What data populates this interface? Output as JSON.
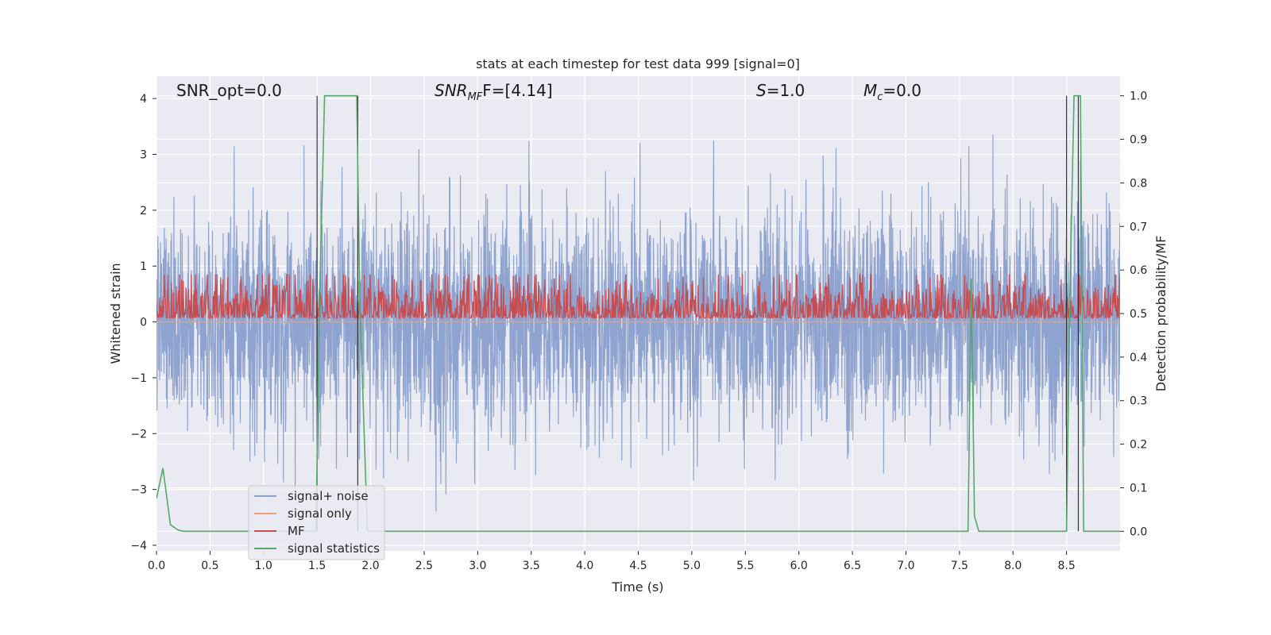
{
  "chart_data": {
    "type": "line",
    "title": "stats at each timestep for test data 999 [signal=0]",
    "xlabel": "Time (s)",
    "ylabel": "Whitened strain",
    "y2label": "Detection probability/MF",
    "xlim": [
      0,
      9
    ],
    "ylim": [
      -4.1,
      4.4
    ],
    "y2lim": [
      -0.045,
      1.045
    ],
    "xticks": [
      "0.0",
      "0.5",
      "1.0",
      "1.5",
      "2.0",
      "2.5",
      "3.0",
      "3.5",
      "4.0",
      "4.5",
      "5.0",
      "5.5",
      "6.0",
      "6.5",
      "7.0",
      "7.5",
      "8.0",
      "8.5"
    ],
    "yticks": [
      "4",
      "3",
      "2",
      "1",
      "0",
      "−1",
      "−2",
      "−3",
      "−4"
    ],
    "y2ticks": [
      "1.0",
      "0.9",
      "0.8",
      "0.7",
      "0.6",
      "0.5",
      "0.4",
      "0.3",
      "0.2",
      "0.1",
      "0.0"
    ],
    "grid": true,
    "legend_placement": "lower-left",
    "annotations": {
      "snr_opt": "SNR_opt=0.0",
      "snr_mf_main": "SNR",
      "snr_mf_sub": "MF",
      "snr_mf_value": "F=[4.14]",
      "s_main": "S",
      "s_value": "=1.0",
      "mc_main": "M",
      "mc_sub": "c",
      "mc_value": "=0.0"
    },
    "series": [
      {
        "name": "signal+ noise",
        "color": "#8ea3cf",
        "axis": "left",
        "description_noise_std": 1.0,
        "x_range": [
          0,
          9
        ]
      },
      {
        "name": "signal only",
        "color": "#e8a17f",
        "axis": "left",
        "x": [
          0,
          9
        ],
        "y": [
          0,
          0
        ]
      },
      {
        "name": "MF",
        "color": "#c44e52",
        "axis": "right",
        "baseline": 0.5,
        "x_range": [
          0,
          9
        ]
      },
      {
        "name": "signal statistics",
        "color": "#55a868",
        "axis": "right",
        "x": [
          0.0,
          0.06,
          0.13,
          0.2,
          0.25,
          0.3,
          1.49,
          1.52,
          1.57,
          1.87,
          1.9,
          1.97,
          2.0,
          7.55,
          7.58,
          7.61,
          7.64,
          7.68,
          7.75,
          7.8,
          8.5,
          8.53,
          8.57,
          8.63,
          8.66,
          9.0
        ],
        "y": [
          0.075,
          0.145,
          0.015,
          0.003,
          0.0,
          0.0,
          0.0,
          0.5,
          1.0,
          1.0,
          0.52,
          0.0,
          0.0,
          0.0,
          0.0,
          0.58,
          0.035,
          0.0,
          0.0,
          0.0,
          0.0,
          0.52,
          1.0,
          1.0,
          0.0,
          0.0
        ]
      }
    ],
    "vlines": [
      1.5,
      1.88,
      8.5,
      8.61
    ],
    "vline_color": "#333333"
  }
}
